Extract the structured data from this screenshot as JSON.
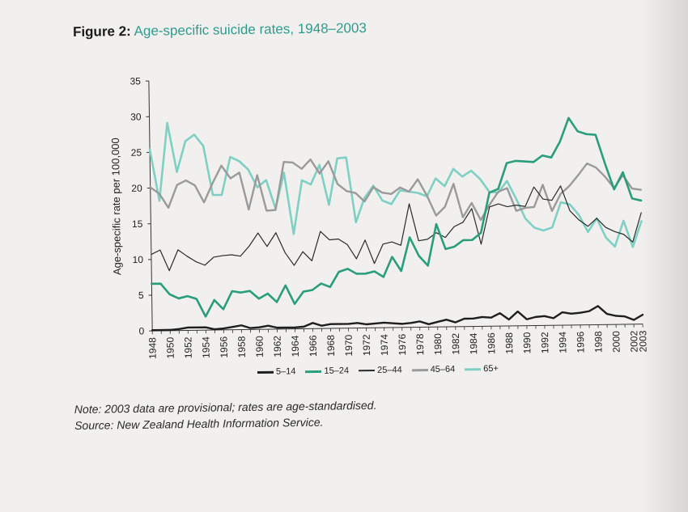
{
  "figure": {
    "number": "Figure 2:",
    "title": "Age-specific suicide rates, 1948–2003",
    "note": "Note: 2003 data are provisional; rates are age-standardised.",
    "source": "Source: New Zealand Health Information Service."
  },
  "chart_data": {
    "type": "line",
    "title": "Age-specific suicide rates, 1948–2003",
    "xlabel": "",
    "ylabel": "Age-specific rate per 100,000",
    "ylim": [
      0,
      35
    ],
    "yticks": [
      "0",
      "5",
      "10",
      "15",
      "20",
      "25",
      "30",
      "35"
    ],
    "xtick_labels": [
      "1948",
      "1950",
      "1952",
      "1954",
      "1956",
      "1958",
      "1960",
      "1962",
      "1964",
      "1966",
      "1968",
      "1970",
      "1972",
      "1974",
      "1976",
      "1978",
      "1980",
      "1982",
      "1984",
      "1986",
      "1988",
      "1990",
      "1992",
      "1994",
      "1996",
      "1998",
      "2000",
      "2002",
      "2003"
    ],
    "x": [
      1948,
      1949,
      1950,
      1951,
      1952,
      1953,
      1954,
      1955,
      1956,
      1957,
      1958,
      1959,
      1960,
      1961,
      1962,
      1963,
      1964,
      1965,
      1966,
      1967,
      1968,
      1969,
      1970,
      1971,
      1972,
      1973,
      1974,
      1975,
      1976,
      1977,
      1978,
      1979,
      1980,
      1981,
      1982,
      1983,
      1984,
      1985,
      1986,
      1987,
      1988,
      1989,
      1990,
      1991,
      1992,
      1993,
      1994,
      1995,
      1996,
      1997,
      1998,
      1999,
      2000,
      2001,
      2002,
      2003
    ],
    "grid": false,
    "legend_position": "bottom",
    "series": [
      {
        "name": "5–14",
        "color": "#1e1e1e",
        "width": 2.4,
        "values": [
          0.1,
          0.1,
          0.1,
          0.2,
          0.4,
          0.4,
          0.4,
          0.1,
          0.2,
          0.4,
          0.6,
          0.2,
          0.3,
          0.5,
          0.2,
          0.2,
          0.2,
          0.3,
          0.8,
          0.4,
          0.6,
          0.6,
          0.6,
          0.7,
          0.5,
          0.6,
          0.7,
          0.6,
          0.5,
          0.6,
          0.8,
          0.4,
          0.7,
          1.0,
          0.6,
          1.1,
          1.1,
          1.3,
          1.2,
          1.8,
          0.9,
          2.0,
          0.9,
          1.2,
          1.3,
          1.0,
          1.8,
          1.6,
          1.7,
          1.9,
          2.6,
          1.5,
          1.2,
          1.1,
          0.6,
          1.3
        ]
      },
      {
        "name": "15–24",
        "color": "#2a9d7c",
        "width": 2.6,
        "values": [
          6.6,
          6.6,
          5.1,
          4.5,
          4.8,
          4.4,
          1.9,
          4.2,
          2.9,
          5.4,
          5.2,
          5.4,
          4.3,
          5.0,
          3.8,
          6.1,
          3.5,
          5.2,
          5.4,
          6.3,
          5.8,
          7.9,
          8.3,
          7.6,
          7.6,
          7.9,
          7.1,
          9.9,
          7.9,
          12.6,
          10.0,
          8.6,
          14.4,
          10.9,
          11.2,
          12.1,
          12.1,
          13.1,
          18.7,
          19.2,
          22.8,
          23.1,
          23.0,
          22.9,
          23.8,
          23.5,
          25.7,
          29.0,
          27.1,
          26.7,
          26.6,
          22.6,
          18.9,
          21.3,
          17.6,
          17.3
        ]
      },
      {
        "name": "25–44",
        "color": "#2a2a2a",
        "width": 1.2,
        "values": [
          10.7,
          11.3,
          8.4,
          11.3,
          10.4,
          9.6,
          9.1,
          10.2,
          10.4,
          10.5,
          10.3,
          11.7,
          13.5,
          11.6,
          13.5,
          10.7,
          8.9,
          10.8,
          9.5,
          13.6,
          12.4,
          12.5,
          11.7,
          9.7,
          12.3,
          9.0,
          11.7,
          12.0,
          11.5,
          17.3,
          12.1,
          12.3,
          13.2,
          12.5,
          14.0,
          14.6,
          16.5,
          11.5,
          16.7,
          17.1,
          16.7,
          16.9,
          16.7,
          19.4,
          17.7,
          17.5,
          19.5,
          16.0,
          14.7,
          13.8,
          14.9,
          13.6,
          13.0,
          12.6,
          11.5,
          15.6
        ]
      },
      {
        "name": "45–64",
        "color": "#9a9a9a",
        "width": 2.4,
        "values": [
          20.1,
          19.2,
          17.2,
          20.4,
          21.0,
          20.3,
          17.9,
          20.6,
          23.0,
          21.2,
          22.0,
          16.8,
          21.6,
          16.6,
          16.7,
          23.4,
          23.3,
          22.4,
          23.7,
          21.7,
          23.4,
          20.2,
          19.2,
          18.9,
          17.7,
          19.7,
          18.9,
          18.7,
          19.6,
          19.0,
          20.7,
          18.4,
          15.6,
          16.8,
          20.0,
          15.3,
          17.3,
          14.9,
          17.0,
          18.8,
          19.3,
          16.1,
          16.5,
          16.6,
          19.7,
          16.0,
          18.4,
          19.5,
          21.0,
          22.6,
          22.0,
          20.7,
          19.1,
          20.9,
          19.0,
          18.8
        ]
      },
      {
        "name": "65+",
        "color": "#7fd0c4",
        "width": 2.6,
        "values": [
          25.4,
          18.2,
          29.1,
          22.2,
          26.5,
          27.4,
          25.8,
          18.9,
          18.9,
          24.2,
          23.6,
          22.4,
          19.9,
          20.9,
          16.9,
          21.9,
          13.3,
          20.8,
          20.2,
          22.9,
          17.3,
          23.8,
          23.9,
          14.8,
          18.2,
          19.9,
          17.8,
          17.3,
          19.2,
          19.0,
          18.8,
          18.3,
          20.8,
          19.7,
          22.1,
          21.0,
          21.8,
          20.6,
          18.8,
          18.7,
          20.3,
          17.8,
          15.0,
          13.7,
          13.3,
          13.7,
          17.2,
          16.9,
          15.4,
          13.0,
          14.9,
          12.2,
          10.9,
          14.5,
          10.8,
          14.4
        ]
      }
    ]
  }
}
